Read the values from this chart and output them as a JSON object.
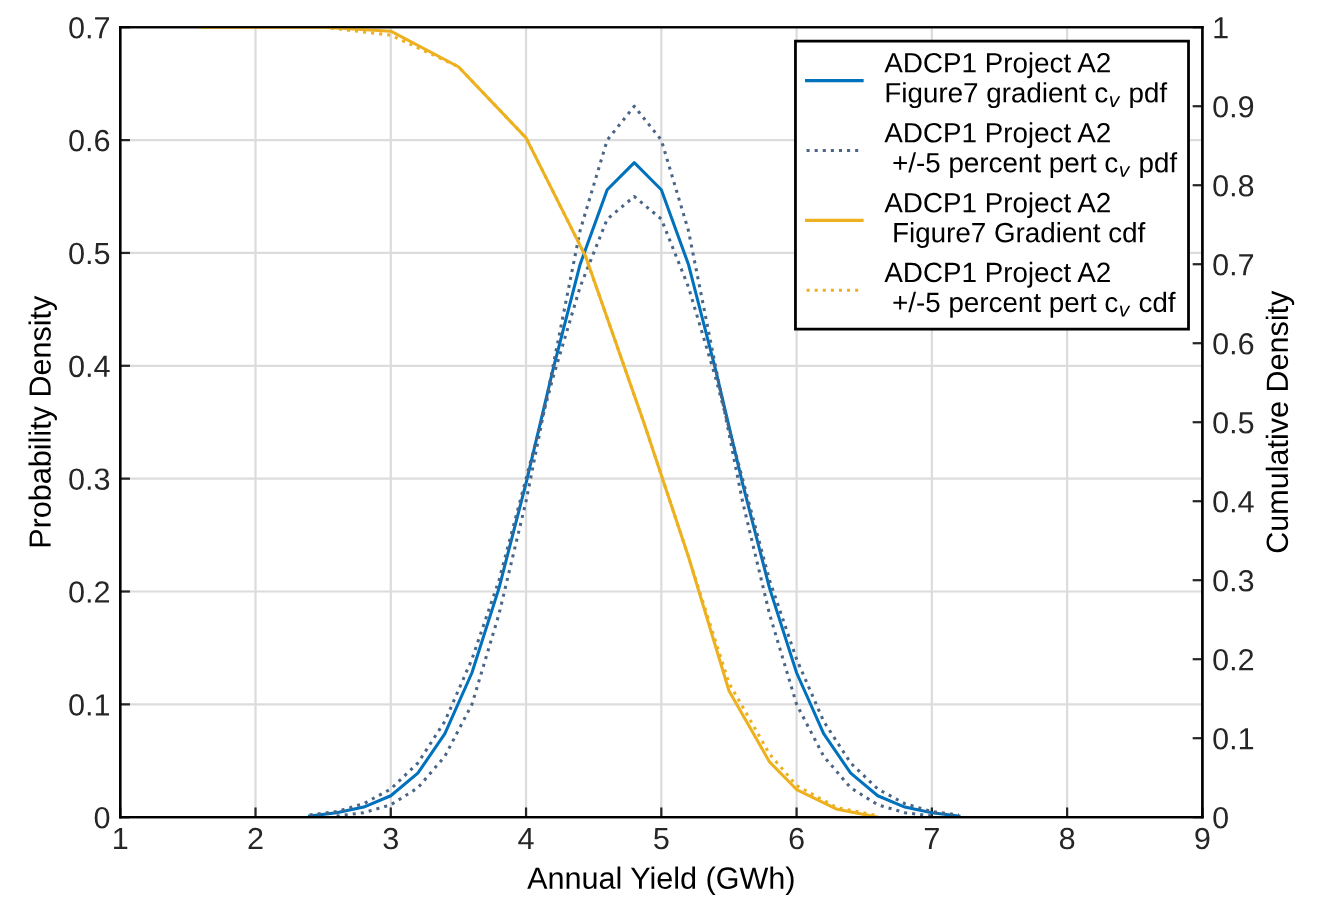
{
  "chart_data": {
    "type": "line",
    "xlabel": "Annual Yield (GWh)",
    "ylabel": "Probability Density",
    "y2label": "Cumulative Density",
    "xlim": [
      1,
      9
    ],
    "xticks": [
      1,
      2,
      3,
      4,
      5,
      6,
      7,
      8,
      9
    ],
    "ylim": [
      0,
      0.7
    ],
    "yticks": [
      0,
      0.1,
      0.2,
      0.3,
      0.4,
      0.5,
      0.6,
      0.7
    ],
    "y2lim": [
      0,
      1
    ],
    "y2ticks": [
      0,
      0.1,
      0.2,
      0.3,
      0.4,
      0.5,
      0.6,
      0.7,
      0.8,
      0.9,
      1
    ],
    "grid": true,
    "legend": "top right",
    "series": [
      {
        "name": "ADCP1 Project A2\nFigure7 gradient c$_{v}$ pdf",
        "color": "#0072bd",
        "line_style": "solid",
        "x": [
          2.4,
          2.6,
          2.8,
          3.0,
          3.2,
          3.4,
          3.6,
          3.8,
          4.0,
          4.2,
          4.4,
          4.6,
          4.8,
          5.0,
          5.2,
          5.4,
          5.6,
          5.8,
          6.0,
          6.2,
          6.4,
          6.6,
          6.8,
          7.0,
          7.2
        ],
        "values": [
          0.001,
          0.004,
          0.009,
          0.019,
          0.039,
          0.074,
          0.128,
          0.203,
          0.296,
          0.397,
          0.49,
          0.556,
          0.58,
          0.556,
          0.49,
          0.397,
          0.296,
          0.203,
          0.128,
          0.074,
          0.039,
          0.019,
          0.009,
          0.004,
          0.001
        ]
      },
      {
        "name": "ADCP1 Project A2\n +/-5 percent pert c$_{v}$ pdf",
        "color": "#4a6585",
        "line_style": "dotted",
        "x": [
          2.6,
          2.8,
          3.0,
          3.2,
          3.4,
          3.6,
          3.8,
          4.0,
          4.2,
          4.4,
          4.6,
          4.8,
          5.0,
          5.2,
          5.4,
          5.6,
          5.8,
          6.0,
          6.2,
          6.4,
          6.6,
          6.8,
          7.0
        ],
        "values": [
          0.001,
          0.004,
          0.011,
          0.026,
          0.054,
          0.1,
          0.18,
          0.28,
          0.4,
          0.52,
          0.6,
          0.63,
          0.6,
          0.52,
          0.4,
          0.28,
          0.18,
          0.1,
          0.054,
          0.026,
          0.011,
          0.004,
          0.001
        ]
      },
      {
        "color": "#4a6585",
        "line_style": "dotted",
        "x": [
          2.4,
          2.6,
          2.8,
          3.0,
          3.2,
          3.4,
          3.6,
          3.8,
          4.0,
          4.2,
          4.4,
          4.6,
          4.8,
          5.0,
          5.2,
          5.4,
          5.6,
          5.8,
          6.0,
          6.2,
          6.4,
          6.6,
          6.8,
          7.0,
          7.2
        ],
        "values": [
          0.002,
          0.005,
          0.012,
          0.025,
          0.048,
          0.085,
          0.14,
          0.21,
          0.3,
          0.39,
          0.47,
          0.53,
          0.55,
          0.53,
          0.47,
          0.39,
          0.3,
          0.21,
          0.14,
          0.085,
          0.048,
          0.025,
          0.012,
          0.005,
          0.002
        ]
      },
      {
        "name": "ADCP1 Project A2\n Figure7 Gradient cdf",
        "color": "#edb120",
        "line_style": "solid",
        "axis": "y2",
        "x": [
          1.6,
          2.5,
          3.0,
          3.5,
          4.0,
          4.44,
          4.87,
          5.2,
          5.5,
          5.8,
          6.0,
          6.3,
          6.6
        ],
        "values": [
          1,
          1,
          0.995,
          0.95,
          0.86,
          0.71,
          0.5,
          0.33,
          0.16,
          0.07,
          0.035,
          0.01,
          0
        ]
      },
      {
        "name": "ADCP1 Project A2\n +/-5 percent pert c$_{v}$ cdf",
        "color": "#edb120",
        "line_style": "dotted",
        "axis": "y2",
        "x": [
          1.6,
          2.5,
          3.0,
          3.5,
          4.0,
          4.44,
          4.87,
          5.2,
          5.5,
          5.8,
          6.0,
          6.3,
          6.6
        ],
        "values": [
          1,
          1,
          0.99,
          0.95,
          0.86,
          0.71,
          0.5,
          0.33,
          0.17,
          0.08,
          0.04,
          0.012,
          0.002
        ]
      }
    ]
  }
}
